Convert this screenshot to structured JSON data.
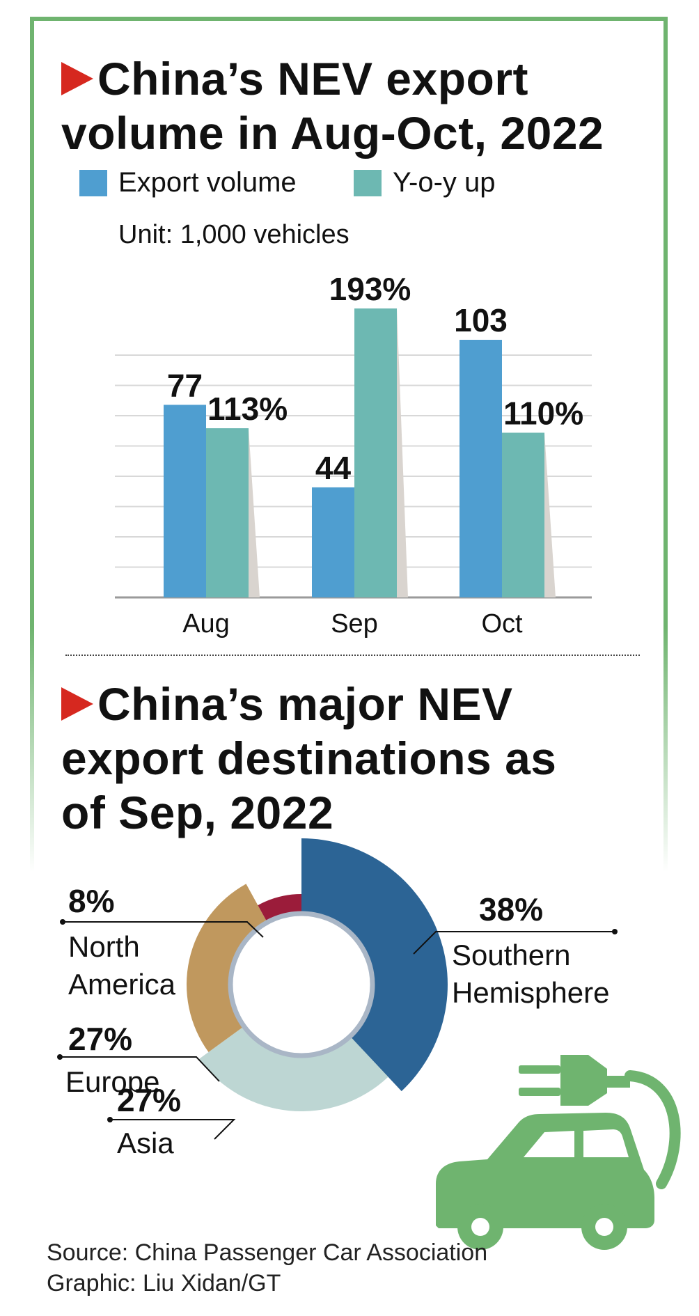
{
  "colors": {
    "export_volume": "#4f9ed0",
    "yoy_up": "#6db8b2",
    "accent_triangle": "#d6281f",
    "frame": "#6fb46f",
    "southern_hemisphere": "#2c6495",
    "asia": "#bdd6d3",
    "europe": "#c0985e",
    "north_america": "#9b1c3a",
    "icon_green": "#6fb46f"
  },
  "section1": {
    "title_line1": "China’s NEV export",
    "title_line2": "volume in Aug-Oct, 2022",
    "legend": [
      {
        "label": "Export volume",
        "color_key": "export_volume"
      },
      {
        "label": "Y-o-y up",
        "color_key": "yoy_up"
      }
    ],
    "unit": "Unit: 1,000 vehicles"
  },
  "section2": {
    "title_line1": "China’s major NEV",
    "title_line2": "export destinations as",
    "title_line3": "of Sep, 2022"
  },
  "footer": {
    "source": "Source: China Passenger Car Association",
    "graphic": "Graphic: Liu Xidan/GT"
  },
  "icons": [
    "plug-icon",
    "car-icon"
  ],
  "chart_data": [
    {
      "type": "bar",
      "categories": [
        "Aug",
        "Sep",
        "Oct"
      ],
      "series": [
        {
          "name": "Export volume",
          "values": [
            77,
            44,
            103
          ],
          "labels": [
            "77",
            "44",
            "103"
          ]
        },
        {
          "name": "Y-o-y up",
          "values": [
            113,
            193,
            110
          ],
          "labels": [
            "113%",
            "193%",
            "110%"
          ]
        }
      ],
      "xlabel": "",
      "ylabel": "",
      "grid": true,
      "legend_position": "top-left"
    },
    {
      "type": "pie",
      "style": "donut",
      "slices": [
        {
          "label": "Southern Hemisphere",
          "value": 38,
          "text": "38%"
        },
        {
          "label": "Asia",
          "value": 27,
          "text": "27%"
        },
        {
          "label": "Europe",
          "value": 27,
          "text": "27%"
        },
        {
          "label": "North America",
          "value": 8,
          "text": "8%"
        }
      ]
    }
  ]
}
